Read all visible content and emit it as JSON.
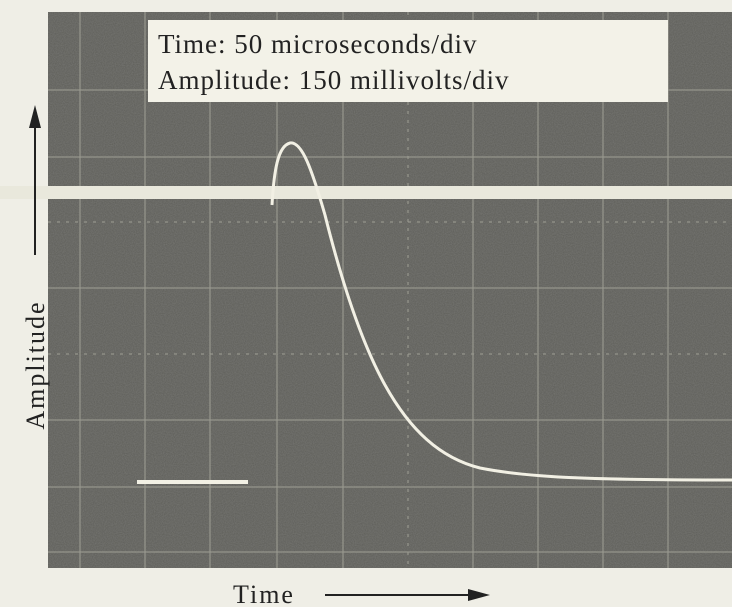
{
  "caption": {
    "lines": [
      "Time: 50 microseconds/div",
      "Amplitude: 150 millivolts/div"
    ]
  },
  "axes": {
    "y_label": "Amplitude",
    "x_label": "Time"
  }
}
